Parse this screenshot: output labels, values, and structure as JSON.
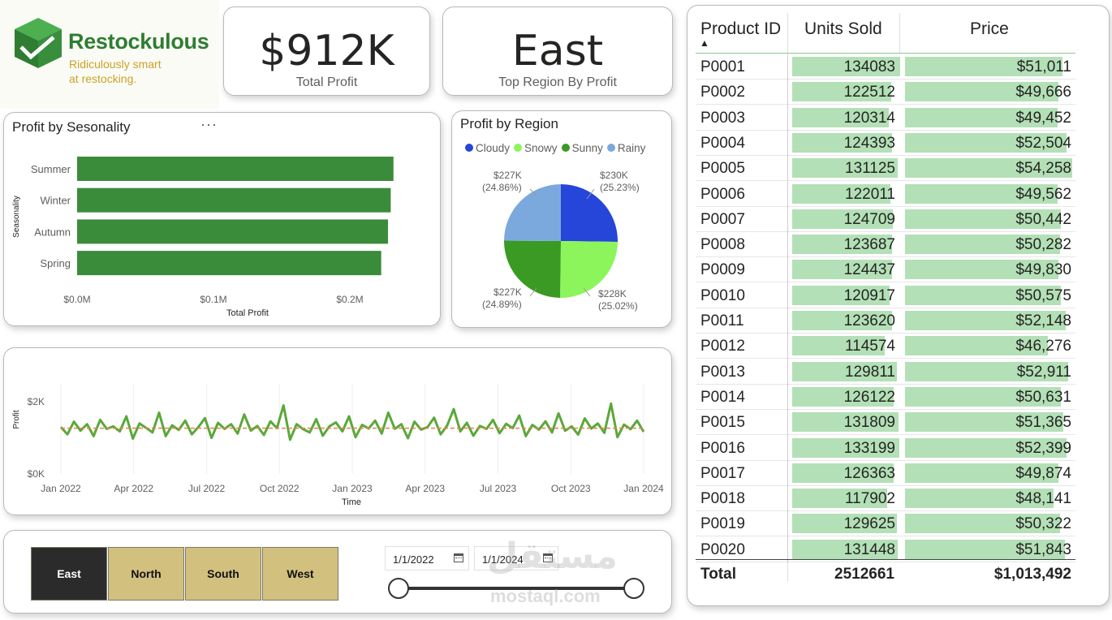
{
  "brand": {
    "name": "Restockulous",
    "tagline_1": "Ridiculously smart",
    "tagline_2": "at restocking."
  },
  "kpis": [
    {
      "value": "$912K",
      "label": "Total Profit"
    },
    {
      "value": "East",
      "label": "Top Region By Profit"
    }
  ],
  "seasonality_chart": {
    "title": "Profit by Sesonality",
    "more_label": "···",
    "ylabel": "Seasonality",
    "xlabel": "Total Profit",
    "ticks": [
      "$0.0M",
      "$0.1M",
      "$0.2M"
    ]
  },
  "region_chart": {
    "title": "Profit by Region",
    "legend": [
      {
        "name": "Cloudy",
        "color": "#2546d8"
      },
      {
        "name": "Snowy",
        "color": "#8cf55c"
      },
      {
        "name": "Sunny",
        "color": "#3a9a23"
      },
      {
        "name": "Rainy",
        "color": "#7ba9dd"
      }
    ],
    "labels": [
      {
        "value": "$230K",
        "pct": "(25.23%)"
      },
      {
        "value": "$228K",
        "pct": "(25.02%)"
      },
      {
        "value": "$227K",
        "pct": "(24.89%)"
      },
      {
        "value": "$227K",
        "pct": "(24.86%)"
      }
    ]
  },
  "timeseries_chart": {
    "ylabel": "Profit",
    "xlabel": "Time",
    "yticks": [
      "$2K",
      "$0K"
    ],
    "xticks": [
      "Jan 2022",
      "Apr 2022",
      "Jul 2022",
      "Oct 2022",
      "Jan 2023",
      "Apr 2023",
      "Jul 2023",
      "Oct 2023",
      "Jan 2024"
    ]
  },
  "table": {
    "headers": [
      "Product ID",
      "Units Sold",
      "Price"
    ],
    "sort_indicator": "▲",
    "rows": [
      {
        "id": "P0001",
        "units": "134083",
        "price": "$51,011"
      },
      {
        "id": "P0002",
        "units": "122512",
        "price": "$49,666"
      },
      {
        "id": "P0003",
        "units": "120314",
        "price": "$49,452"
      },
      {
        "id": "P0004",
        "units": "124393",
        "price": "$52,504"
      },
      {
        "id": "P0005",
        "units": "131125",
        "price": "$54,258"
      },
      {
        "id": "P0006",
        "units": "122011",
        "price": "$49,562"
      },
      {
        "id": "P0007",
        "units": "124709",
        "price": "$50,442"
      },
      {
        "id": "P0008",
        "units": "123687",
        "price": "$50,282"
      },
      {
        "id": "P0009",
        "units": "124437",
        "price": "$49,830"
      },
      {
        "id": "P0010",
        "units": "120917",
        "price": "$50,575"
      },
      {
        "id": "P0011",
        "units": "123620",
        "price": "$52,148"
      },
      {
        "id": "P0012",
        "units": "114574",
        "price": "$46,276"
      },
      {
        "id": "P0013",
        "units": "129811",
        "price": "$52,911"
      },
      {
        "id": "P0014",
        "units": "126122",
        "price": "$50,631"
      },
      {
        "id": "P0015",
        "units": "131809",
        "price": "$51,365"
      },
      {
        "id": "P0016",
        "units": "133199",
        "price": "$52,399"
      },
      {
        "id": "P0017",
        "units": "126363",
        "price": "$49,874"
      },
      {
        "id": "P0018",
        "units": "117902",
        "price": "$48,141"
      },
      {
        "id": "P0019",
        "units": "129625",
        "price": "$50,322"
      },
      {
        "id": "P0020",
        "units": "131448",
        "price": "$51,843"
      }
    ],
    "total": {
      "label": "Total",
      "units": "2512661",
      "price": "$1,013,492"
    }
  },
  "slicer": {
    "regions": [
      {
        "label": "East",
        "selected": true
      },
      {
        "label": "North",
        "selected": false
      },
      {
        "label": "South",
        "selected": false
      },
      {
        "label": "West",
        "selected": false
      }
    ],
    "start_date": "1/1/2022",
    "end_date": "1/1/2024",
    "colors": {
      "selected_bg": "#2b2b2b",
      "selected_fg": "#ffffff",
      "bg": "#d2c07f",
      "fg": "#111111"
    }
  },
  "watermark": {
    "arabic": "مستقل",
    "latin": "mostaql.com"
  },
  "colors": {
    "bar": "#3a8c3a",
    "line": "#5aa83a",
    "trend": "#e8824a",
    "table_bar": "#b3e0b6"
  },
  "chart_data": [
    {
      "type": "bar",
      "title": "Profit by Sesonality",
      "categories": [
        "Summer",
        "Winter",
        "Autumn",
        "Spring"
      ],
      "values": [
        0.232,
        0.23,
        0.228,
        0.223
      ],
      "xlabel": "Total Profit",
      "ylabel": "Seasonality",
      "xlim": [
        0,
        0.25
      ],
      "orientation": "horizontal"
    },
    {
      "type": "pie",
      "title": "Profit by Region",
      "categories": [
        "Cloudy",
        "Snowy",
        "Sunny",
        "Rainy"
      ],
      "values": [
        230,
        228,
        227,
        227
      ],
      "percentages": [
        25.23,
        25.02,
        24.89,
        24.86
      ],
      "legend": "top"
    },
    {
      "type": "line",
      "xlabel": "Time",
      "ylabel": "Profit",
      "x_range": [
        "2022-01-01",
        "2024-01-01"
      ],
      "ylim": [
        0,
        2500
      ],
      "series": [
        {
          "values": [
            1300,
            1100,
            1450,
            1200,
            1380,
            1050,
            1500,
            1250,
            1320,
            1180,
            1600,
            980,
            1400,
            1280,
            1150,
            1700,
            1050,
            1350,
            1220,
            1480,
            1100,
            1300,
            1550,
            1000,
            1420,
            1250,
            1380,
            1120,
            1650,
            1200,
            1330,
            1080,
            1460,
            1270,
            1900,
            950,
            1380,
            1240,
            1150,
            1520,
            1060,
            1320,
            1430,
            1180,
            1600,
            1020,
            1360,
            1260,
            1480,
            1120,
            1700,
            1250,
            1380,
            990,
            1450,
            1230,
            1300,
            1560,
            1100,
            1350,
            1800,
            1180,
            1420,
            1060,
            1330,
            1250,
            1500,
            1130,
            1390,
            1270,
            1620,
            1050,
            1360,
            1230,
            1460,
            1150,
            1680,
            1200,
            1320,
            1090,
            1540,
            1260,
            1400,
            1140,
            1950,
            1020,
            1370,
            1240,
            1480,
            1170
          ]
        },
        {
          "name": "trend",
          "values": [
            1270,
            1270
          ]
        }
      ]
    }
  ]
}
